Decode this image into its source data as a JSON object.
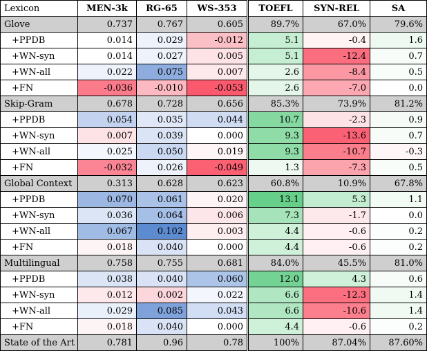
{
  "header": [
    "Lexicon",
    "MEN-3k",
    "RG-65",
    "WS-353",
    "TOEFL",
    "SYN-REL",
    "SA"
  ],
  "rows": [
    {
      "label": "Glove",
      "type": "group",
      "values": [
        "0.737",
        "0.767",
        "0.605",
        "89.7%",
        "67.0%",
        "79.6%"
      ],
      "colors": [
        "#cfcfcf",
        "#cfcfcf",
        "#cfcfcf",
        "#cfcfcf",
        "#cfcfcf",
        "#cfcfcf"
      ]
    },
    {
      "label": "+PPDB",
      "type": "sub",
      "values": [
        "0.014",
        "0.029",
        "-0.012",
        "5.1",
        "-0.4",
        "1.6"
      ],
      "colors": [
        "#ffffff",
        "#edf2fb",
        "#fbbfc6",
        "#c6eed3",
        "#fff3f4",
        "#eef9f1"
      ]
    },
    {
      "label": "+WN-syn",
      "type": "sub",
      "values": [
        "0.014",
        "0.027",
        "0.005",
        "5.1",
        "-12.4",
        "0.7"
      ],
      "colors": [
        "#ffffff",
        "#eef3fb",
        "#fde3e6",
        "#c6eed3",
        "#fb6e7f",
        "#f7fcf8"
      ]
    },
    {
      "label": "+WN-all",
      "type": "sub",
      "values": [
        "0.022",
        "0.075",
        "0.007",
        "2.6",
        "-8.4",
        "0.5"
      ],
      "colors": [
        "#eef3fb",
        "#8eadde",
        "#fde8eb",
        "#e3f6e9",
        "#fb98a4",
        "#f9fdfa"
      ]
    },
    {
      "label": "+FN",
      "type": "sub",
      "values": [
        "-0.036",
        "-0.010",
        "-0.053",
        "2.6",
        "-7.0",
        "0.0"
      ],
      "colors": [
        "#fb7b8a",
        "#fcb9c1",
        "#fb5a6e",
        "#e3f6e9",
        "#fba8b2",
        "#ffffff"
      ]
    },
    {
      "label": "Skip-Gram",
      "type": "group",
      "values": [
        "0.678",
        "0.728",
        "0.656",
        "85.3%",
        "73.9%",
        "81.2%"
      ],
      "colors": [
        "#cfcfcf",
        "#cfcfcf",
        "#cfcfcf",
        "#cfcfcf",
        "#cfcfcf",
        "#cfcfcf"
      ]
    },
    {
      "label": "+PPDB",
      "type": "sub",
      "values": [
        "0.054",
        "0.035",
        "0.044",
        "10.7",
        "-2.3",
        "0.9"
      ],
      "colors": [
        "#c3d3ef",
        "#e0e8f7",
        "#cfdcf2",
        "#84d8a0",
        "#fde2e6",
        "#f6fbf7"
      ]
    },
    {
      "label": "+WN-syn",
      "type": "sub",
      "values": [
        "0.007",
        "0.039",
        "0.000",
        "9.3",
        "-13.6",
        "0.7"
      ],
      "colors": [
        "#fde3e6",
        "#dae4f5",
        "#ffffff",
        "#8fdca8",
        "#fb6174",
        "#f7fcf8"
      ]
    },
    {
      "label": "+WN-all",
      "type": "sub",
      "values": [
        "0.025",
        "0.050",
        "0.019",
        "9.3",
        "-10.7",
        "-0.3"
      ],
      "colors": [
        "#f3f6fc",
        "#cad8f1",
        "#fdf5f6",
        "#8fdca8",
        "#fb7e8c",
        "#fef6f7"
      ]
    },
    {
      "label": "+FN",
      "type": "sub",
      "values": [
        "-0.032",
        "0.026",
        "-0.049",
        "1.3",
        "-7.3",
        "0.5"
      ],
      "colors": [
        "#fb8594",
        "#eef3fb",
        "#fb6073",
        "#eef9f1",
        "#fba4ae",
        "#f9fdfa"
      ]
    },
    {
      "label": "Global Context",
      "type": "group",
      "values": [
        "0.313",
        "0.628",
        "0.623",
        "60.8%",
        "10.9%",
        "67.8%"
      ],
      "colors": [
        "#cfcfcf",
        "#cfcfcf",
        "#cfcfcf",
        "#cfcfcf",
        "#cfcfcf",
        "#cfcfcf"
      ]
    },
    {
      "label": "+PPDB",
      "type": "sub",
      "values": [
        "0.070",
        "0.061",
        "0.020",
        "13.1",
        "5.3",
        "1.1"
      ],
      "colors": [
        "#9bb7e2",
        "#aac2e7",
        "#fdf4f5",
        "#66cf8a",
        "#c3edd0",
        "#f3fbf5"
      ]
    },
    {
      "label": "+WN-syn",
      "type": "sub",
      "values": [
        "0.036",
        "0.064",
        "0.006",
        "7.3",
        "-1.7",
        "0.0"
      ],
      "colors": [
        "#dbe5f6",
        "#a5bfe6",
        "#fde6e9",
        "#a6e3ba",
        "#fde8eb",
        "#ffffff"
      ]
    },
    {
      "label": "+WN-all",
      "type": "sub",
      "values": [
        "0.067",
        "0.102",
        "0.003",
        "4.4",
        "-0.6",
        "0.2"
      ],
      "colors": [
        "#a0bbe4",
        "#5d8bd0",
        "#fdeef0",
        "#cff1da",
        "#fff1f3",
        "#fcfefd"
      ]
    },
    {
      "label": "+FN",
      "type": "sub",
      "values": [
        "0.018",
        "0.040",
        "0.000",
        "4.4",
        "-0.6",
        "0.2"
      ],
      "colors": [
        "#fdf4f5",
        "#d9e3f5",
        "#ffffff",
        "#cff1da",
        "#fff1f3",
        "#fcfefd"
      ]
    },
    {
      "label": "Multilingual",
      "type": "group",
      "values": [
        "0.758",
        "0.755",
        "0.681",
        "84.0%",
        "45.5%",
        "81.0%"
      ],
      "colors": [
        "#cfcfcf",
        "#cfcfcf",
        "#cfcfcf",
        "#cfcfcf",
        "#cfcfcf",
        "#cfcfcf"
      ]
    },
    {
      "label": "+PPDB",
      "type": "sub",
      "values": [
        "0.038",
        "0.040",
        "0.060",
        "12.0",
        "4.3",
        "0.6"
      ],
      "colors": [
        "#dbe5f6",
        "#d9e3f5",
        "#acc4e8",
        "#74d394",
        "#cff1da",
        "#f8fcf9"
      ]
    },
    {
      "label": "+WN-syn",
      "type": "sub",
      "values": [
        "0.012",
        "0.002",
        "0.022",
        "6.6",
        "-12.3",
        "1.4"
      ],
      "colors": [
        "#fde9ec",
        "#fbd6db",
        "#f3f6fc",
        "#b0e6c2",
        "#fb6f80",
        "#f0faf3"
      ]
    },
    {
      "label": "+WN-all",
      "type": "sub",
      "values": [
        "0.029",
        "0.085",
        "0.043",
        "6.6",
        "-10.6",
        "1.4"
      ],
      "colors": [
        "#eaf0fa",
        "#7fa2da",
        "#d2def3",
        "#b0e6c2",
        "#fb7f8d",
        "#f0faf3"
      ]
    },
    {
      "label": "+FN",
      "type": "sub",
      "values": [
        "0.018",
        "0.040",
        "0.000",
        "4.4",
        "-0.6",
        "0.2"
      ],
      "colors": [
        "#fdf4f5",
        "#d9e3f5",
        "#ffffff",
        "#cff1da",
        "#fff1f3",
        "#fcfefd"
      ]
    },
    {
      "label": "State of the Art",
      "type": "group",
      "values": [
        "0.781",
        "0.96",
        "0.78",
        "100%",
        "87.04%",
        "87.60%"
      ],
      "colors": [
        "#cfcfcf",
        "#cfcfcf",
        "#cfcfcf",
        "#cfcfcf",
        "#cfcfcf",
        "#cfcfcf"
      ]
    }
  ]
}
